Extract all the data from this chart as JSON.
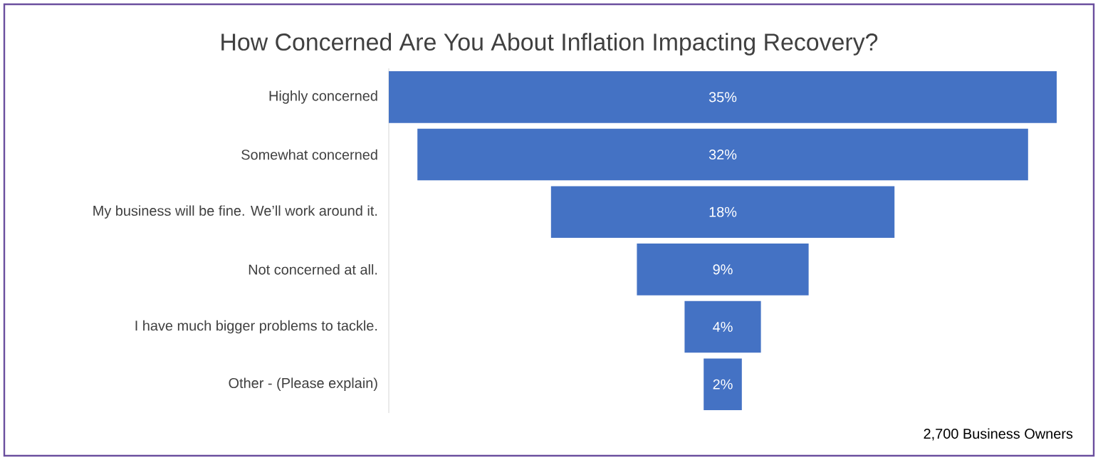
{
  "chart_data": {
    "type": "other",
    "title": "How Concerned Are You About Inflation Impacting Recovery?",
    "categories": [
      "Highly concerned",
      "Somewhat concerned",
      "My business will be fine. We’ll work around it.",
      "Not concerned at all.",
      "I have much bigger problems to tackle.",
      "Other - (Please explain)"
    ],
    "values": [
      35,
      32,
      18,
      9,
      4,
      2
    ],
    "value_labels": [
      "35%",
      "32%",
      "18%",
      "9%",
      "4%",
      "2%"
    ],
    "color": "#4472c4",
    "annotations": [
      "2,700 Business Owners"
    ]
  }
}
